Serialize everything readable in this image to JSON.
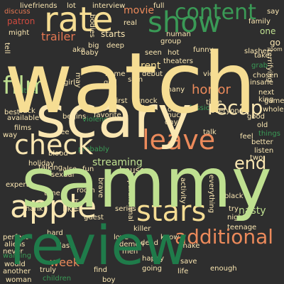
{
  "palette": {
    "background": "#2e2e2e",
    "yellow": "#f6dd93",
    "cream": "#fbe7b2",
    "orange": "#ec8a5b",
    "salmon": "#e37752",
    "red": "#cf4a3f",
    "lightgreen": "#bfe090",
    "midgreen": "#8dc87c",
    "green": "#3a9a56",
    "darkgreen": "#1f7b4a"
  },
  "words": [
    {
      "text": "watch",
      "color": "yellow"
    },
    {
      "text": "sammy",
      "color": "lightgreen"
    },
    {
      "text": "scary",
      "color": "cream"
    },
    {
      "text": "review",
      "color": "darkgreen"
    },
    {
      "text": "apple",
      "color": "cream"
    },
    {
      "text": "rate",
      "color": "yellow"
    },
    {
      "text": "show",
      "color": "green"
    },
    {
      "text": "check",
      "color": "cream"
    },
    {
      "text": "leave",
      "color": "orange"
    },
    {
      "text": "stars",
      "color": "yellow"
    },
    {
      "text": "content",
      "color": "green"
    },
    {
      "text": "additional",
      "color": "orange"
    },
    {
      "text": "film",
      "color": "lightgreen"
    },
    {
      "text": "recap",
      "color": "cream"
    },
    {
      "text": "horror",
      "color": "orange"
    },
    {
      "text": "trailer",
      "color": "salmon"
    },
    {
      "text": "movie",
      "color": "orange"
    },
    {
      "text": "streaming",
      "color": "lightgreen"
    },
    {
      "text": "week",
      "color": "orange"
    },
    {
      "text": "house",
      "color": "cream"
    },
    {
      "text": "end",
      "color": "cream"
    },
    {
      "text": "like",
      "color": "cream"
    },
    {
      "text": "nasty",
      "color": "lightgreen"
    },
    {
      "text": "say",
      "color": "cream"
    },
    {
      "text": "one",
      "color": "lightgreen"
    },
    {
      "text": "go",
      "color": "cream"
    },
    {
      "text": "rent",
      "color": "yellow"
    },
    {
      "text": "starts",
      "color": "cream"
    },
    {
      "text": "patron",
      "color": "red"
    },
    {
      "text": "lot",
      "color": "cream"
    },
    {
      "text": "discuss",
      "color": "salmon"
    },
    {
      "text": "might",
      "color": "cream"
    },
    {
      "text": "friends",
      "color": "cream"
    },
    {
      "text": "interview",
      "color": "cream"
    },
    {
      "text": "full",
      "color": "cream"
    },
    {
      "text": "family",
      "color": "cream"
    },
    {
      "text": "slasher",
      "color": "cream"
    },
    {
      "text": "live",
      "color": "cream"
    },
    {
      "text": "real",
      "color": "cream"
    },
    {
      "text": "theaters",
      "color": "cream"
    },
    {
      "text": "hot",
      "color": "cream"
    },
    {
      "text": "seen",
      "color": "cream"
    },
    {
      "text": "funny",
      "color": "cream"
    },
    {
      "text": "take",
      "color": "cream"
    },
    {
      "text": "grab",
      "color": "green"
    },
    {
      "text": "terrifying",
      "color": "cream"
    },
    {
      "text": "video",
      "color": "cream"
    },
    {
      "text": "knock",
      "color": "cream"
    },
    {
      "text": "first",
      "color": "cream"
    },
    {
      "text": "favorite",
      "color": "cream"
    },
    {
      "text": "day",
      "color": "cream"
    },
    {
      "text": "time",
      "color": "cream"
    },
    {
      "text": "everyone",
      "color": "cream"
    },
    {
      "text": "whole",
      "color": "cream"
    },
    {
      "text": "game",
      "color": "cream"
    },
    {
      "text": "good",
      "color": "cream"
    },
    {
      "text": "old",
      "color": "cream"
    },
    {
      "text": "things",
      "color": "green"
    },
    {
      "text": "better",
      "color": "cream"
    },
    {
      "text": "listen",
      "color": "cream"
    },
    {
      "text": "two",
      "color": "cream"
    },
    {
      "text": "many",
      "color": "cream"
    },
    {
      "text": "talk",
      "color": "cream"
    },
    {
      "text": "feel",
      "color": "cream"
    },
    {
      "text": "classic",
      "color": "green"
    },
    {
      "text": "next",
      "color": "cream"
    },
    {
      "text": "king",
      "color": "cream"
    },
    {
      "text": "talking",
      "color": "cream"
    },
    {
      "text": "also",
      "color": "cream"
    },
    {
      "text": "fun",
      "color": "cream"
    },
    {
      "text": "sexual",
      "color": "cream"
    },
    {
      "text": "brave",
      "color": "cream"
    },
    {
      "text": "room",
      "color": "cream"
    },
    {
      "text": "paranormal",
      "color": "cream"
    },
    {
      "text": "activity",
      "color": "cream"
    },
    {
      "text": "everything",
      "color": "cream"
    },
    {
      "text": "black",
      "color": "cream"
    },
    {
      "text": "try",
      "color": "cream"
    },
    {
      "text": "expert",
      "color": "cream"
    },
    {
      "text": "tune",
      "color": "cream"
    },
    {
      "text": "thank",
      "color": "cream"
    },
    {
      "text": "hell",
      "color": "cream"
    },
    {
      "text": "series",
      "color": "cream"
    },
    {
      "text": "guest",
      "color": "cream"
    },
    {
      "text": "perfect",
      "color": "cream"
    },
    {
      "text": "aliens",
      "color": "cream"
    },
    {
      "text": "never",
      "color": "cream"
    },
    {
      "text": "warning",
      "color": "green"
    },
    {
      "text": "would",
      "color": "cream"
    },
    {
      "text": "another",
      "color": "cream"
    },
    {
      "text": "woman",
      "color": "cream"
    },
    {
      "text": "children",
      "color": "green"
    },
    {
      "text": "truly",
      "color": "cream"
    },
    {
      "text": "find",
      "color": "cream"
    },
    {
      "text": "boy",
      "color": "cream"
    },
    {
      "text": "going",
      "color": "cream"
    },
    {
      "text": "happy",
      "color": "cream"
    },
    {
      "text": "save",
      "color": "cream"
    },
    {
      "text": "life",
      "color": "cream"
    },
    {
      "text": "enough",
      "color": "cream"
    },
    {
      "text": "love",
      "color": "cream"
    },
    {
      "text": "dead",
      "color": "cream"
    },
    {
      "text": "know",
      "color": "cream"
    },
    {
      "text": "make",
      "color": "cream"
    },
    {
      "text": "teenage",
      "color": "cream"
    },
    {
      "text": "night",
      "color": "cream"
    },
    {
      "text": "girl",
      "color": "cream"
    },
    {
      "text": "home",
      "color": "cream"
    },
    {
      "text": "god",
      "color": "cream"
    },
    {
      "text": "sam",
      "color": "cream"
    },
    {
      "text": "debut",
      "color": "cream"
    },
    {
      "text": "damn",
      "color": "cream"
    },
    {
      "text": "much",
      "color": "cream"
    },
    {
      "text": "back",
      "color": "cream"
    },
    {
      "text": "best",
      "color": "cream"
    },
    {
      "text": "way",
      "color": "cream"
    },
    {
      "text": "see",
      "color": "cream"
    },
    {
      "text": "blood",
      "color": "cream"
    },
    {
      "text": "begins",
      "color": "cream"
    },
    {
      "text": "probably",
      "color": "green"
    },
    {
      "text": "violence",
      "color": "green"
    },
    {
      "text": "holiday",
      "color": "cream"
    },
    {
      "text": "killer",
      "color": "cream"
    },
    {
      "text": "demon",
      "color": "cream"
    },
    {
      "text": "men",
      "color": "cream"
    },
    {
      "text": "last",
      "color": "cream"
    },
    {
      "text": "hard",
      "color": "cream"
    },
    {
      "text": "big",
      "color": "cream"
    },
    {
      "text": "baby",
      "color": "cream"
    },
    {
      "text": "aka",
      "color": "cream"
    },
    {
      "text": "deep",
      "color": "cream"
    },
    {
      "text": "human",
      "color": "cream"
    },
    {
      "text": "group",
      "color": "cream"
    },
    {
      "text": "tell",
      "color": "cream"
    },
    {
      "text": "may",
      "color": "cream"
    },
    {
      "text": "chosen",
      "color": "cream"
    },
    {
      "text": "insane",
      "color": "cream"
    },
    {
      "text": "bodies",
      "color": "cream"
    },
    {
      "text": "zoom",
      "color": "cream"
    },
    {
      "text": "little",
      "color": "green"
    },
    {
      "text": "films",
      "color": "cream"
    },
    {
      "text": "available",
      "color": "cream"
    }
  ]
}
